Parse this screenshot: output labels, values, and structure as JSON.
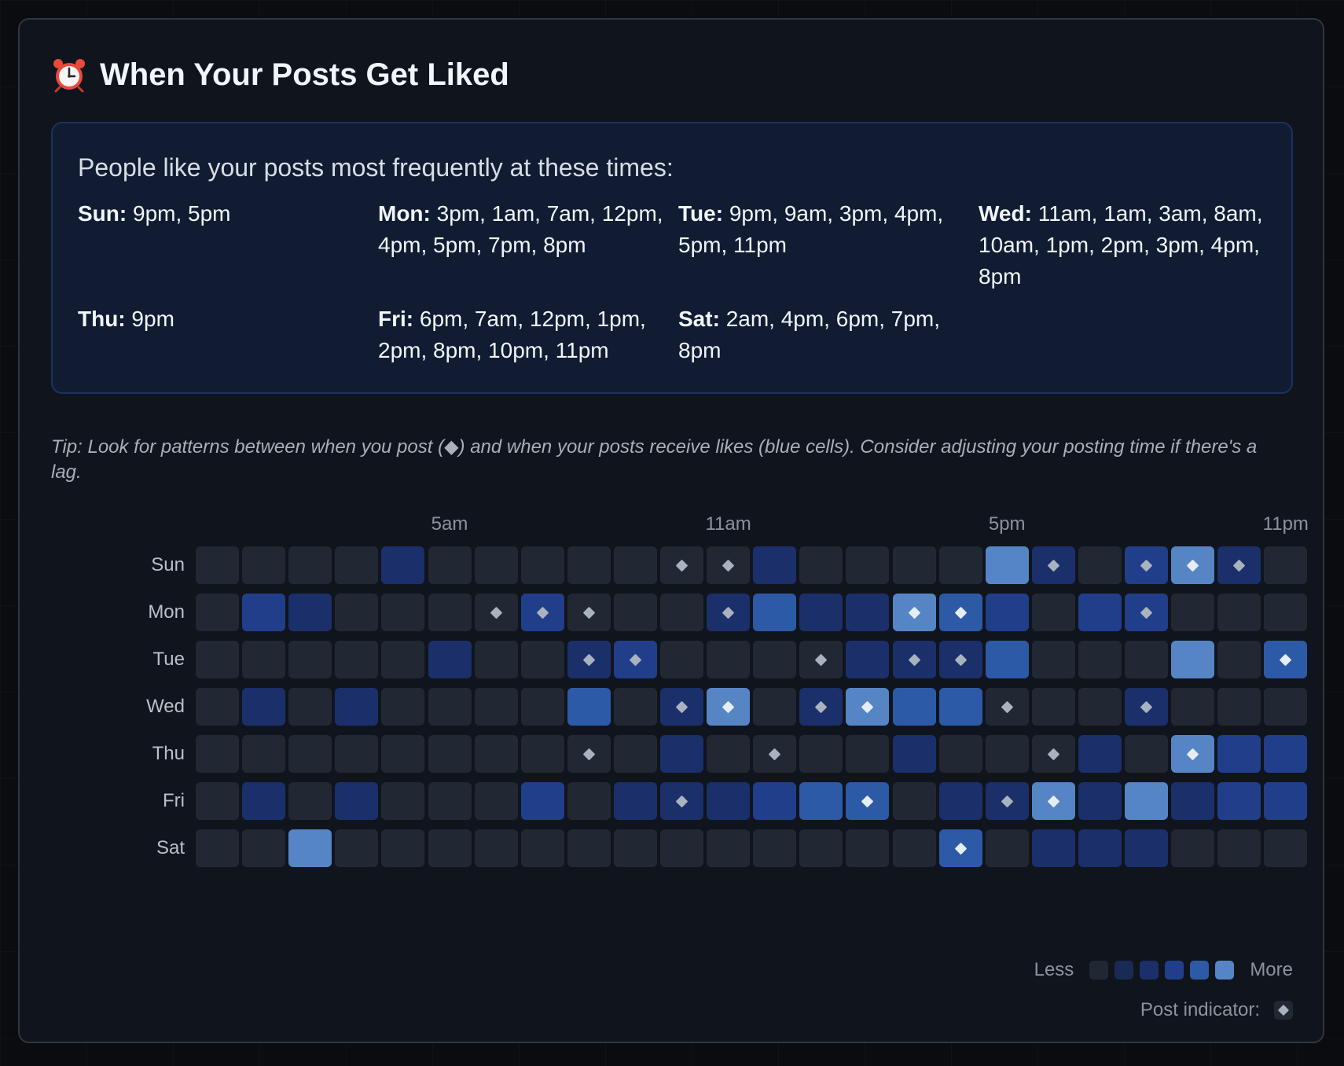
{
  "title": "When Your Posts Get Liked",
  "summary": {
    "heading": "People like your posts most frequently at these times:",
    "days": [
      {
        "day": "Sun:",
        "times": "9pm, 5pm"
      },
      {
        "day": "Mon:",
        "times": "3pm, 1am, 7am, 12pm, 4pm, 5pm, 7pm, 8pm"
      },
      {
        "day": "Tue:",
        "times": "9pm, 9am, 3pm, 4pm, 5pm, 11pm"
      },
      {
        "day": "Wed:",
        "times": "11am, 1am, 3am, 8am, 10am, 1pm, 2pm, 3pm, 4pm, 8pm"
      },
      {
        "day": "Thu:",
        "times": "9pm"
      },
      {
        "day": "Fri:",
        "times": "6pm, 7am, 12pm, 1pm, 2pm, 8pm, 10pm, 11pm"
      },
      {
        "day": "Sat:",
        "times": "2am, 4pm, 6pm, 7pm, 8pm"
      }
    ]
  },
  "tip": "Tip: Look for patterns between when you post (◆) and when your posts receive likes (blue cells). Consider adjusting your posting time if there's a lag.",
  "chart_data": {
    "type": "heatmap",
    "hour_tick_labels": [
      {
        "hour": 5,
        "label": "5am"
      },
      {
        "hour": 11,
        "label": "11am"
      },
      {
        "hour": 17,
        "label": "5pm"
      },
      {
        "hour": 23,
        "label": "11pm"
      }
    ],
    "days": [
      "Sun",
      "Mon",
      "Tue",
      "Wed",
      "Thu",
      "Fri",
      "Sat"
    ],
    "levels": [
      [
        0,
        0,
        0,
        0,
        2,
        0,
        0,
        0,
        0,
        0,
        0,
        0,
        2,
        0,
        0,
        0,
        0,
        5,
        2,
        0,
        3,
        5,
        2,
        0
      ],
      [
        0,
        3,
        2,
        0,
        0,
        0,
        0,
        3,
        0,
        0,
        0,
        2,
        4,
        2,
        2,
        5,
        4,
        3,
        0,
        3,
        3,
        0,
        0,
        0
      ],
      [
        0,
        0,
        0,
        0,
        0,
        2,
        0,
        0,
        2,
        3,
        0,
        0,
        0,
        0,
        2,
        2,
        2,
        4,
        0,
        0,
        0,
        5,
        0,
        4
      ],
      [
        0,
        2,
        0,
        2,
        0,
        0,
        0,
        0,
        4,
        0,
        2,
        5,
        0,
        2,
        5,
        4,
        4,
        0,
        0,
        0,
        2,
        0,
        0,
        0
      ],
      [
        0,
        0,
        0,
        0,
        0,
        0,
        0,
        0,
        0,
        0,
        2,
        0,
        0,
        0,
        0,
        2,
        0,
        0,
        0,
        2,
        0,
        5,
        3,
        3
      ],
      [
        0,
        2,
        0,
        2,
        0,
        0,
        0,
        3,
        0,
        2,
        2,
        2,
        3,
        4,
        4,
        0,
        2,
        2,
        5,
        2,
        5,
        2,
        3,
        3
      ],
      [
        0,
        0,
        5,
        0,
        0,
        0,
        0,
        0,
        0,
        0,
        0,
        0,
        0,
        0,
        0,
        0,
        4,
        0,
        2,
        2,
        2,
        0,
        0,
        0
      ]
    ],
    "posts": [
      [
        10,
        11,
        18,
        20,
        21,
        22
      ],
      [
        6,
        7,
        8,
        11,
        15,
        16,
        20
      ],
      [
        8,
        9,
        13,
        15,
        16,
        23
      ],
      [
        10,
        11,
        13,
        14,
        17,
        20
      ],
      [
        8,
        12,
        18,
        21
      ],
      [
        10,
        14,
        17,
        18
      ],
      [
        16
      ]
    ],
    "level_colors": [
      "#222833",
      "#1a2a55",
      "#1b2f6b",
      "#213e8a",
      "#2d5aa6",
      "#5585c5"
    ]
  },
  "legend": {
    "less_label": "Less",
    "more_label": "More",
    "post_indicator_label": "Post indicator:"
  }
}
